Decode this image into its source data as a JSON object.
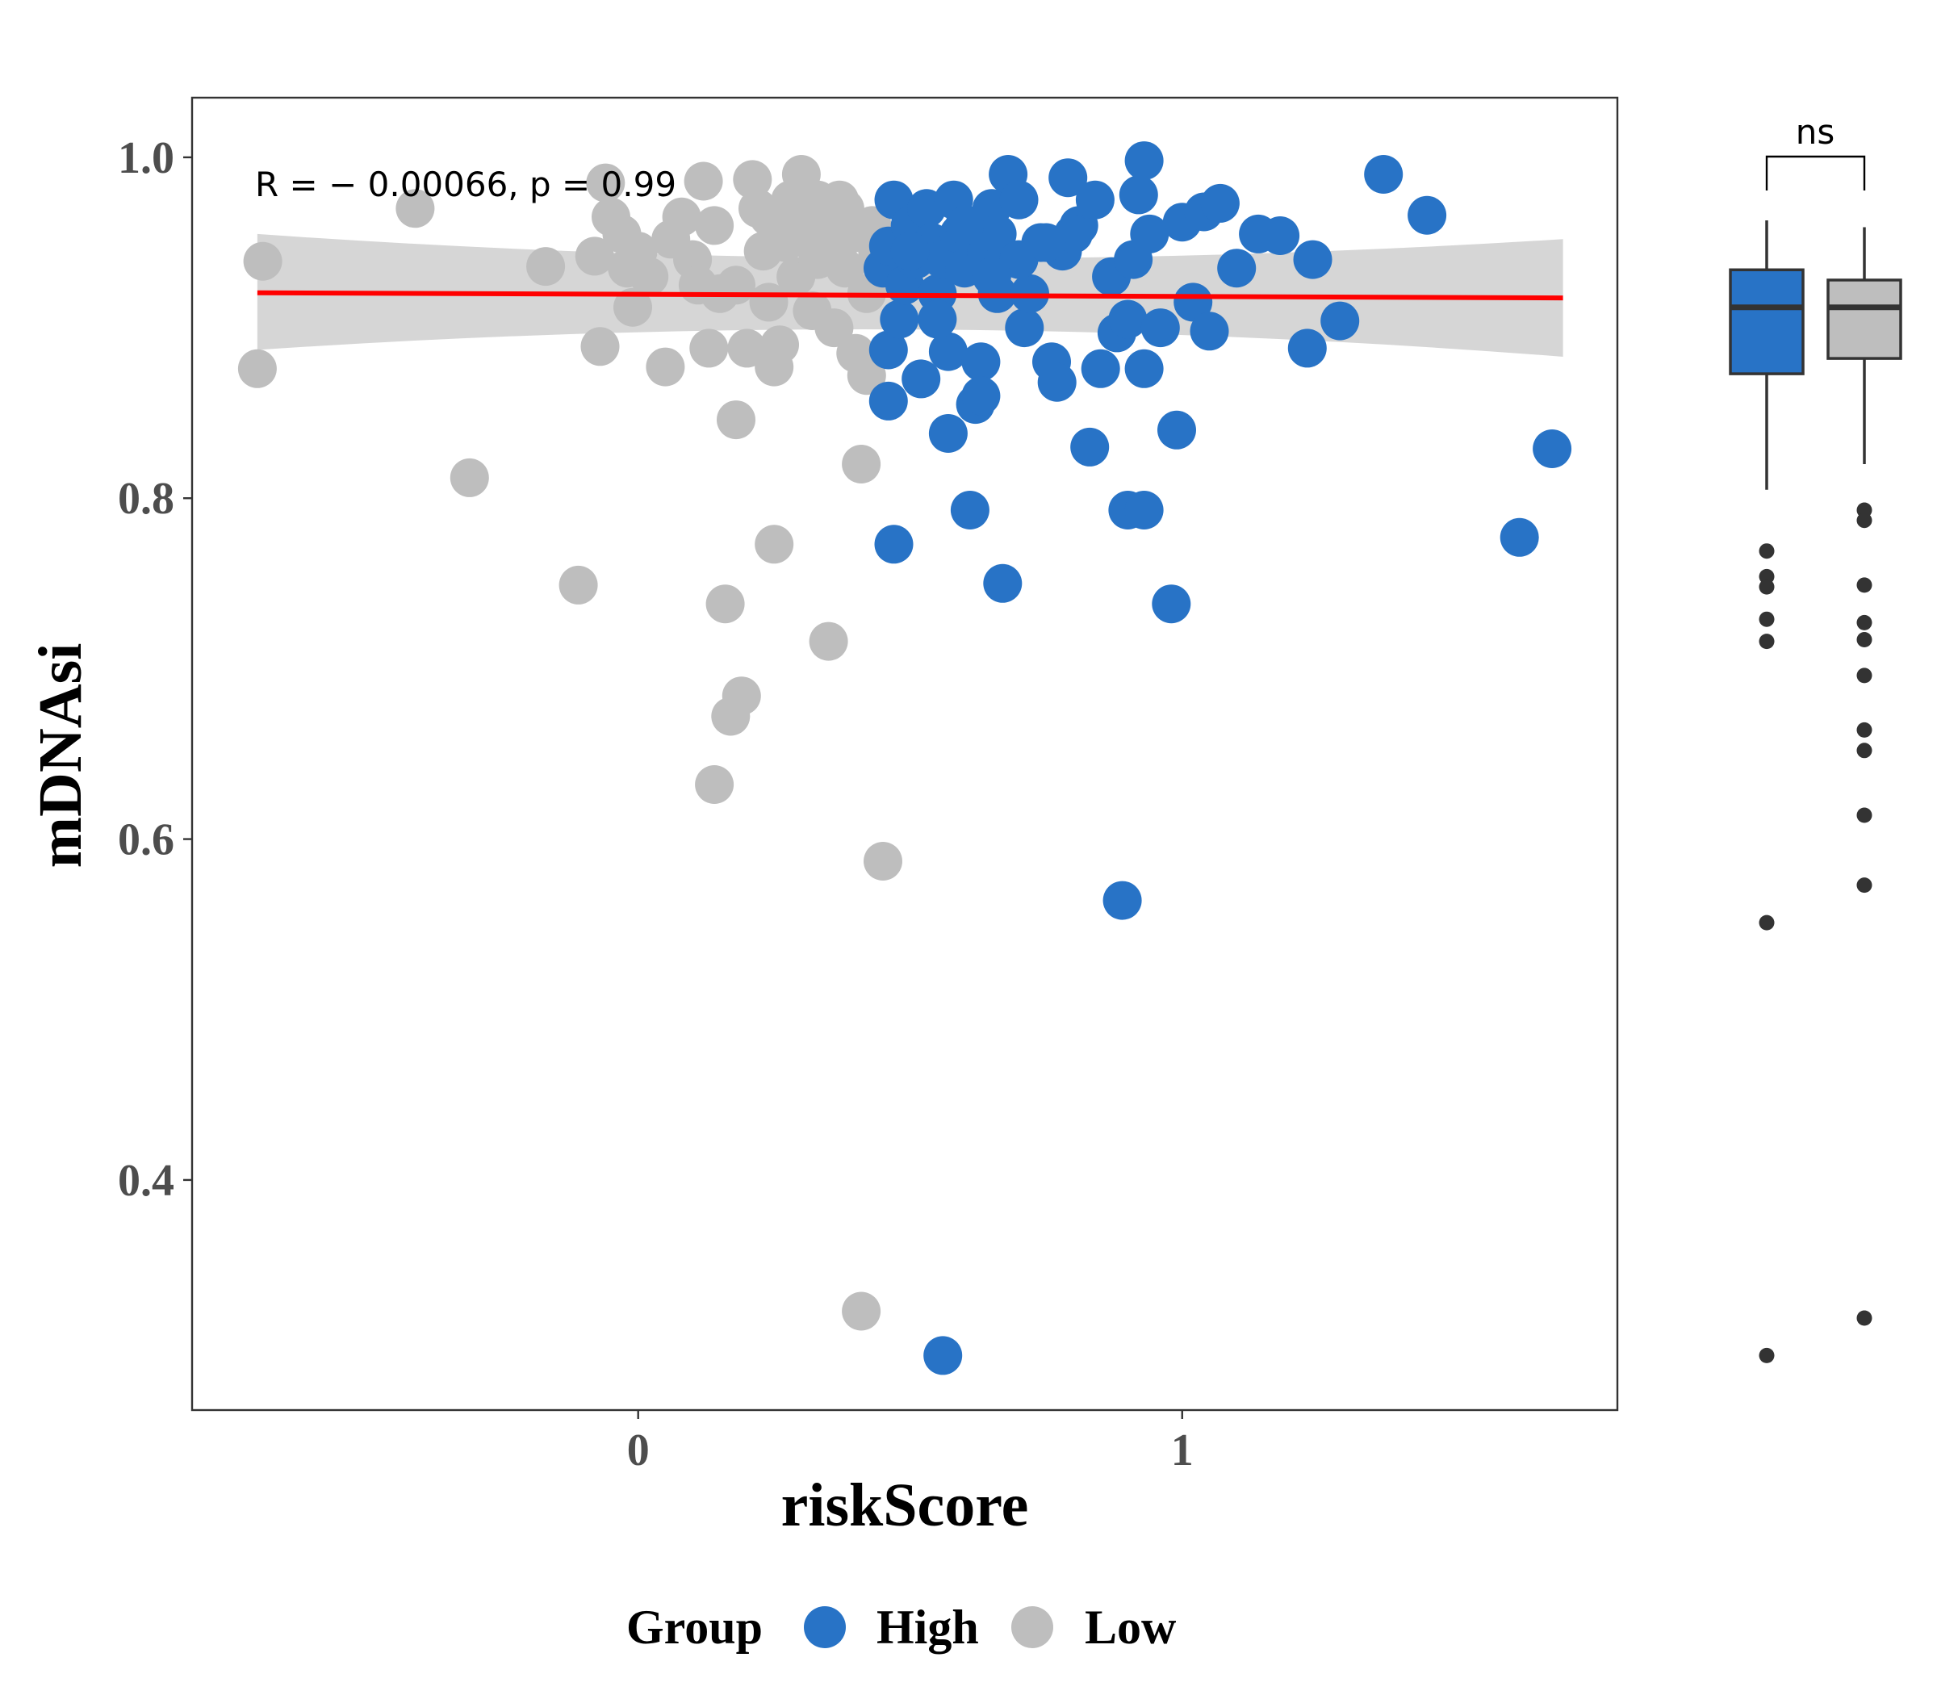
{
  "chart_data": {
    "type": "scatter",
    "xlabel": "riskScore",
    "ylabel": "mDNAsi",
    "xlim": [
      -0.82,
      1.8
    ],
    "ylim": [
      0.265,
      1.035
    ],
    "x_ticks": [
      {
        "v": 0,
        "label": "0"
      },
      {
        "v": 1,
        "label": "1"
      }
    ],
    "y_ticks": [
      {
        "v": 0.4,
        "label": "0.4"
      },
      {
        "v": 0.6,
        "label": "0.6"
      },
      {
        "v": 0.8,
        "label": "0.8"
      },
      {
        "v": 1.0,
        "label": "1.0"
      }
    ],
    "grid": false,
    "annotation": "R = − 0.00066, p = 0.99",
    "regression": {
      "x1": -0.7,
      "y1": 0.9205,
      "x2": 1.7,
      "y2": 0.9175,
      "color": "#FF0000",
      "band_upper": [
        0.955,
        0.952
      ],
      "band_lower": [
        0.887,
        0.883
      ],
      "band_mid_upper": 0.928,
      "band_mid_lower": 0.913
    },
    "legend": {
      "title": "Group",
      "position": "bottom",
      "entries": [
        {
          "label": "High",
          "color": "#2873C6"
        },
        {
          "label": "Low",
          "color": "#BEBEBE"
        }
      ]
    },
    "series": [
      {
        "name": "Low",
        "color": "#BEBEBE",
        "points": [
          [
            -0.7,
            0.876
          ],
          [
            -0.69,
            0.939
          ],
          [
            -0.41,
            0.97
          ],
          [
            -0.31,
            0.812
          ],
          [
            -0.17,
            0.936
          ],
          [
            -0.11,
            0.749
          ],
          [
            -0.08,
            0.942
          ],
          [
            -0.07,
            0.889
          ],
          [
            -0.06,
            0.985
          ],
          [
            -0.05,
            0.965
          ],
          [
            -0.03,
            0.955
          ],
          [
            -0.02,
            0.935
          ],
          [
            -0.01,
            0.912
          ],
          [
            0.02,
            0.93
          ],
          [
            0.05,
            0.877
          ],
          [
            0.06,
            0.952
          ],
          [
            0.08,
            0.965
          ],
          [
            0.1,
            0.94
          ],
          [
            0.11,
            0.925
          ],
          [
            0.12,
            0.986
          ],
          [
            0.13,
            0.888
          ],
          [
            0.14,
            0.96
          ],
          [
            0.15,
            0.92
          ],
          [
            0.16,
            0.738
          ],
          [
            0.17,
            0.672
          ],
          [
            0.18,
            0.846
          ],
          [
            0.19,
            0.684
          ],
          [
            0.2,
            0.888
          ],
          [
            0.21,
            0.987
          ],
          [
            0.22,
            0.97
          ],
          [
            0.23,
            0.945
          ],
          [
            0.24,
            0.915
          ],
          [
            0.25,
            0.877
          ],
          [
            0.25,
            0.773
          ],
          [
            0.26,
            0.89
          ],
          [
            0.27,
            0.95
          ],
          [
            0.28,
            0.975
          ],
          [
            0.29,
            0.93
          ],
          [
            0.3,
            0.99
          ],
          [
            0.31,
            0.96
          ],
          [
            0.32,
            0.91
          ],
          [
            0.33,
            0.94
          ],
          [
            0.34,
            0.965
          ],
          [
            0.35,
            0.716
          ],
          [
            0.36,
            0.9
          ],
          [
            0.37,
            0.975
          ],
          [
            0.38,
            0.935
          ],
          [
            0.39,
            0.955
          ],
          [
            0.4,
            0.885
          ],
          [
            0.41,
            0.82
          ],
          [
            0.41,
            0.323
          ],
          [
            0.42,
            0.92
          ],
          [
            0.42,
            0.872
          ],
          [
            0.43,
            0.96
          ],
          [
            0.44,
            0.945
          ],
          [
            0.45,
            0.587
          ],
          [
            0.46,
            0.93
          ],
          [
            0.14,
            0.632
          ],
          [
            0.0,
            0.945
          ],
          [
            0.28,
            0.955
          ],
          [
            0.33,
            0.975
          ],
          [
            0.38,
            0.97
          ],
          [
            0.18,
            0.925
          ],
          [
            0.24,
            0.965
          ],
          [
            0.35,
            0.945
          ]
        ]
      },
      {
        "name": "High",
        "color": "#2873C6",
        "points": [
          [
            0.45,
            0.935
          ],
          [
            0.46,
            0.887
          ],
          [
            0.46,
            0.948
          ],
          [
            0.46,
            0.857
          ],
          [
            0.47,
            0.773
          ],
          [
            0.47,
            0.975
          ],
          [
            0.48,
            0.905
          ],
          [
            0.49,
            0.925
          ],
          [
            0.5,
            0.96
          ],
          [
            0.51,
            0.94
          ],
          [
            0.52,
            0.87
          ],
          [
            0.53,
            0.97
          ],
          [
            0.54,
            0.95
          ],
          [
            0.55,
            0.92
          ],
          [
            0.56,
            0.94
          ],
          [
            0.56,
            0.297
          ],
          [
            0.57,
            0.838
          ],
          [
            0.57,
            0.886
          ],
          [
            0.58,
            0.975
          ],
          [
            0.59,
            0.955
          ],
          [
            0.6,
            0.935
          ],
          [
            0.61,
            0.793
          ],
          [
            0.62,
            0.96
          ],
          [
            0.62,
            0.855
          ],
          [
            0.63,
            0.88
          ],
          [
            0.63,
            0.86
          ],
          [
            0.64,
            0.945
          ],
          [
            0.65,
            0.97
          ],
          [
            0.66,
            0.92
          ],
          [
            0.66,
            0.955
          ],
          [
            0.67,
            0.75
          ],
          [
            0.68,
            0.99
          ],
          [
            0.7,
            0.975
          ],
          [
            0.71,
            0.9
          ],
          [
            0.72,
            0.92
          ],
          [
            0.74,
            0.95
          ],
          [
            0.76,
            0.88
          ],
          [
            0.77,
            0.868
          ],
          [
            0.78,
            0.945
          ],
          [
            0.79,
            0.988
          ],
          [
            0.81,
            0.96
          ],
          [
            0.83,
            0.83
          ],
          [
            0.84,
            0.975
          ],
          [
            0.85,
            0.876
          ],
          [
            0.87,
            0.93
          ],
          [
            0.88,
            0.897
          ],
          [
            0.89,
            0.564
          ],
          [
            0.9,
            0.793
          ],
          [
            0.9,
            0.905
          ],
          [
            0.91,
            0.94
          ],
          [
            0.92,
            0.978
          ],
          [
            0.93,
            0.998
          ],
          [
            0.93,
            0.793
          ],
          [
            0.93,
            0.876
          ],
          [
            0.94,
            0.955
          ],
          [
            0.96,
            0.9
          ],
          [
            0.98,
            0.738
          ],
          [
            0.99,
            0.84
          ],
          [
            1.0,
            0.962
          ],
          [
            1.02,
            0.915
          ],
          [
            1.04,
            0.968
          ],
          [
            1.05,
            0.898
          ],
          [
            1.07,
            0.973
          ],
          [
            1.1,
            0.935
          ],
          [
            1.14,
            0.955
          ],
          [
            1.18,
            0.954
          ],
          [
            1.23,
            0.888
          ],
          [
            1.24,
            0.94
          ],
          [
            1.29,
            0.904
          ],
          [
            1.37,
            0.99
          ],
          [
            1.45,
            0.966
          ],
          [
            1.62,
            0.777
          ],
          [
            1.68,
            0.829
          ],
          [
            0.5,
            0.945
          ],
          [
            0.6,
            0.96
          ],
          [
            0.7,
            0.94
          ],
          [
            0.8,
            0.955
          ],
          [
            0.55,
            0.905
          ],
          [
            0.65,
            0.93
          ],
          [
            0.75,
            0.95
          ]
        ]
      }
    ],
    "inset_boxplot": {
      "type": "box",
      "comparison_label": "ns",
      "boxes": [
        {
          "name": "High",
          "fill": "#2873C6",
          "q1": 0.873,
          "median": 0.912,
          "q3": 0.934,
          "whisker_low": 0.805,
          "whisker_high": 0.963,
          "outliers": [
            0.769,
            0.754,
            0.748,
            0.729,
            0.716,
            0.551,
            0.297
          ]
        },
        {
          "name": "Low",
          "fill": "#BEBEBE",
          "q1": 0.882,
          "median": 0.912,
          "q3": 0.928,
          "whisker_low": 0.82,
          "whisker_high": 0.959,
          "outliers": [
            0.793,
            0.787,
            0.749,
            0.727,
            0.717,
            0.696,
            0.664,
            0.652,
            0.614,
            0.573,
            0.319
          ]
        }
      ]
    }
  }
}
